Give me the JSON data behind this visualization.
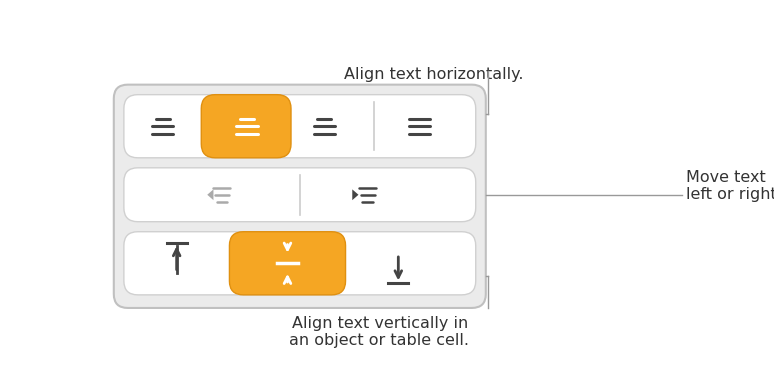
{
  "bg_color": "#ffffff",
  "panel_bg": "#ebebeb",
  "panel_border": "#c0c0c0",
  "row_bg": "#ffffff",
  "row_border": "#d0d0d0",
  "highlight_color": "#f5a623",
  "highlight_border": "#e09010",
  "icon_color_dark": "#444444",
  "icon_color_grey": "#aaaaaa",
  "icon_color_white": "#ffffff",
  "annotation_color": "#333333",
  "line_color": "#999999",
  "title_top": "Align text horizontally.",
  "label_right": "Move text\nleft or right.",
  "label_bottom": "Align text vertically in\nan object or table cell.",
  "fig_w": 7.74,
  "fig_h": 3.91,
  "dpi": 100
}
